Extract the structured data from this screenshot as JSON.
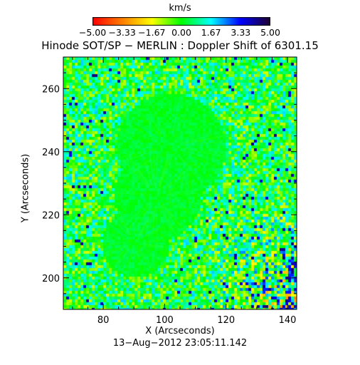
{
  "colorbar": {
    "unit": "km/s",
    "ticks": [
      "−5.00",
      "−3.33",
      "−1.67",
      "0.00",
      "1.67",
      "3.33",
      "5.00"
    ],
    "colors": [
      "#ff0000",
      "#ff8000",
      "#ffff00",
      "#00ff00",
      "#00ffff",
      "#0000ff",
      "#200030"
    ]
  },
  "title": "Hinode SOT/SP − MERLIN : Doppler Shift of 6301.15",
  "xlabel": "X (Arcseconds)",
  "ylabel": "Y (Arcseconds)",
  "timestamp": "13−Aug−2012 23:05:11.142",
  "axes": {
    "x_range": [
      67,
      143
    ],
    "y_range": [
      190,
      270
    ],
    "x_ticks": [
      "80",
      "100",
      "120",
      "140"
    ],
    "x_tick_values": [
      80,
      100,
      120,
      140
    ],
    "y_ticks": [
      "200",
      "220",
      "240",
      "260"
    ],
    "y_tick_values": [
      200,
      220,
      240,
      260
    ]
  }
}
